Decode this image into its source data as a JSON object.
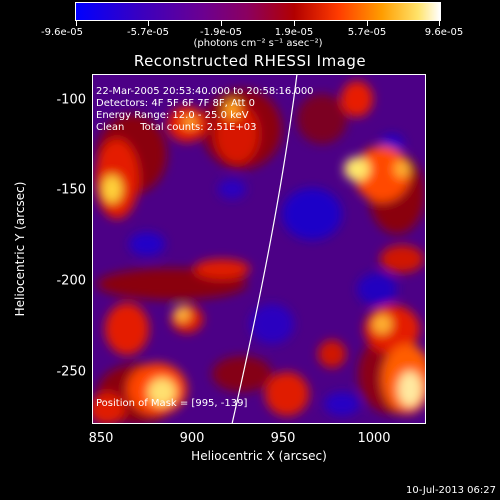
{
  "colorbar": {
    "ticks": [
      "-9.6e-05",
      "-5.7e-05",
      "-1.9e-05",
      "1.9e-05",
      "5.7e-05",
      "9.6e-05"
    ],
    "unit": "(photons cm⁻² s⁻¹ asec⁻²)",
    "colors": [
      "#0000ff",
      "#6c0090",
      "#b20000",
      "#ff3b00",
      "#ff9d00",
      "#ffffff"
    ]
  },
  "plot": {
    "title": "Reconstructed RHESSI Image",
    "info_lines": [
      "22-Mar-2005 20:53:40.000 to 20:58:16.000",
      "Detectors: 4F 5F 6F 7F 8F, Att 0",
      "Energy Range: 12.0 - 25.0 keV",
      "Clean     Total counts: 2.51E+03"
    ],
    "position_text": "Position of Mask = [995, -139]",
    "xlabel": "Heliocentric X (arcsec)",
    "ylabel": "Heliocentric Y (arcsec)",
    "xticks": [
      "850",
      "900",
      "950",
      "1000"
    ],
    "yticks": [
      "-100",
      "-150",
      "-200",
      "-250"
    ]
  },
  "timestamp": "10-Jul-2013 06:27"
}
